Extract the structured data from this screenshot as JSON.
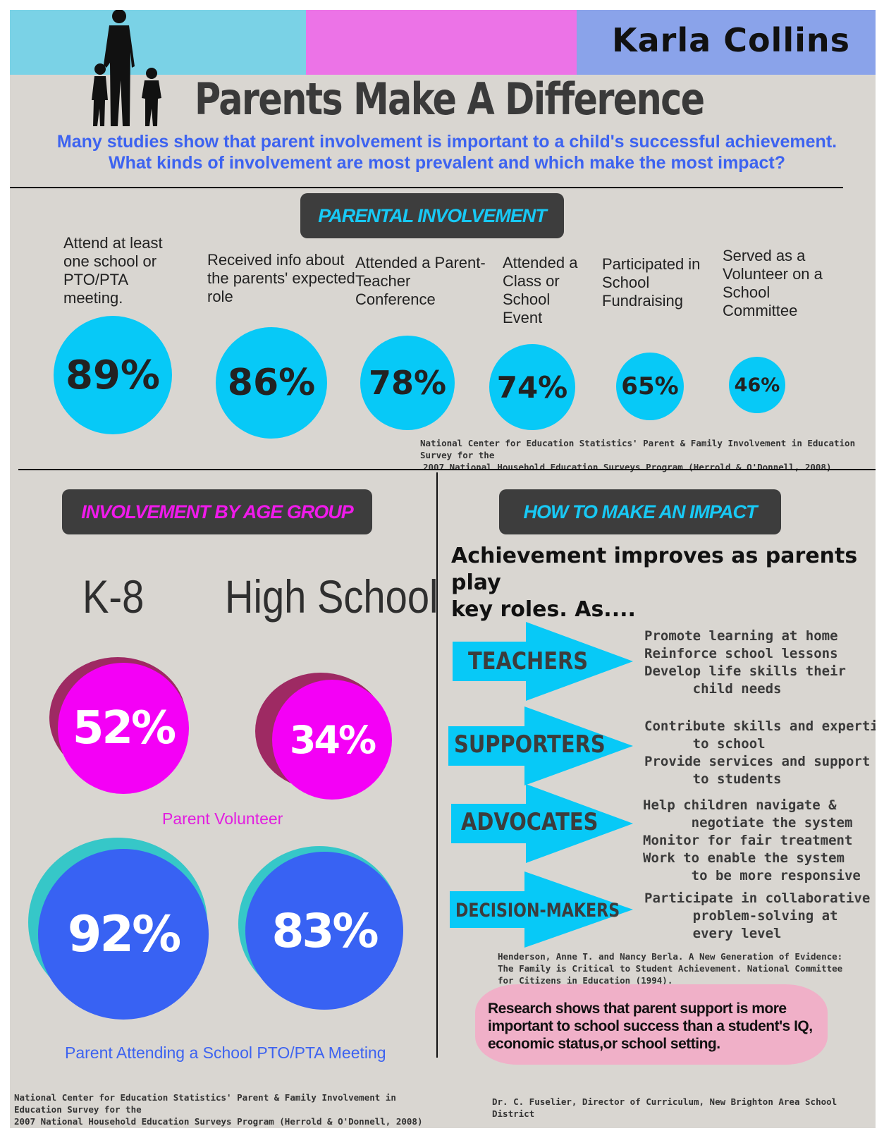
{
  "author": "Karla Collins",
  "title": "Parents Make A Difference",
  "subtitle": {
    "line1": "Many studies show that parent involvement is important to a child's successful achievement.",
    "line2": "What kinds of involvement are most prevalent and which make the most impact?"
  },
  "colors": {
    "band1": "#7ad2e6",
    "band2": "#ec73e7",
    "band3": "#8aa3ea",
    "cyan": "#07c9f7",
    "magenta": "#f400f6",
    "blue": "#3862f3"
  },
  "parental": {
    "heading": "PARENTAL INVOLVEMENT",
    "items": [
      {
        "label": "Attend at least one school or PTO/PTA meeting.",
        "value": "89%"
      },
      {
        "label": "Received info about the parents' expected role",
        "value": "86%"
      },
      {
        "label": "Attended a Parent-Teacher Conference",
        "value": "78%"
      },
      {
        "label": "Attended a Class or School Event",
        "value": "74%"
      },
      {
        "label": "Participated in School Fundraising",
        "value": "65%"
      },
      {
        "label": "Served as a Volunteer on a School Committee",
        "value": "46%"
      }
    ],
    "citation_line1": "National Center for Education Statistics' Parent & Family Involvement in Education Survey for the",
    "citation_line2": "2007 National Household Education Surveys Program (Herrold & O'Donnell, 2008)"
  },
  "age": {
    "heading": "INVOLVEMENT BY AGE GROUP",
    "k8": "K-8",
    "high_school": "High School",
    "volunteer": {
      "k8": "52%",
      "hs": "34%",
      "caption": "Parent Volunteer"
    },
    "pto": {
      "k8": "92%",
      "hs": "83%",
      "caption": "Parent Attending a School PTO/PTA Meeting"
    },
    "citation_line1": "National Center for Education Statistics' Parent & Family Involvement in Education Survey for the",
    "citation_line2": "2007 National Household Education Surveys Program (Herrold & O'Donnell, 2008)"
  },
  "impact": {
    "heading": "HOW TO MAKE AN IMPACT",
    "intro_line1": "Achievement improves as parents play",
    "intro_line2": "key roles.   As....",
    "roles": [
      {
        "name": "TEACHERS",
        "lines": "Promote learning at home\nReinforce school lessons\nDevelop life skills their\n      child needs"
      },
      {
        "name": "SUPPORTERS",
        "lines": "Contribute skills and expertise\n      to school\nProvide services and support\n      to students"
      },
      {
        "name": "ADVOCATES",
        "lines": "Help children navigate &\n      negotiate the system\nMonitor for fair treatment\nWork to enable the system\n      to be more responsive"
      },
      {
        "name": "DECISION-MAKERS",
        "lines": "Participate in collaborative\n      problem-solving at\n      every level"
      }
    ],
    "citation_line1": "Henderson, Anne T. and Nancy Berla. A New Generation of Evidence:",
    "citation_line2": "The Family is Critical to Student Achievement. National Committee",
    "citation_line3": " for Citizens in Education (1994).",
    "research": "Research shows that parent support is more important to school success than a student's IQ, economic status,or school setting.",
    "quote_credit": "Dr. C. Fuselier, Director of Curriculum, New Brighton Area School District"
  }
}
